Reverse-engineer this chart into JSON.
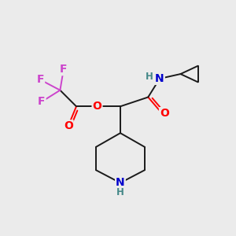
{
  "background_color": "#ebebeb",
  "bond_color": "#1a1a1a",
  "atom_colors": {
    "F": "#cc44cc",
    "O": "#ff0000",
    "N": "#0000cc",
    "H": "#448888",
    "C": "#1a1a1a"
  },
  "font_size_atoms": 10,
  "font_size_h": 8.5,
  "lw": 1.4
}
